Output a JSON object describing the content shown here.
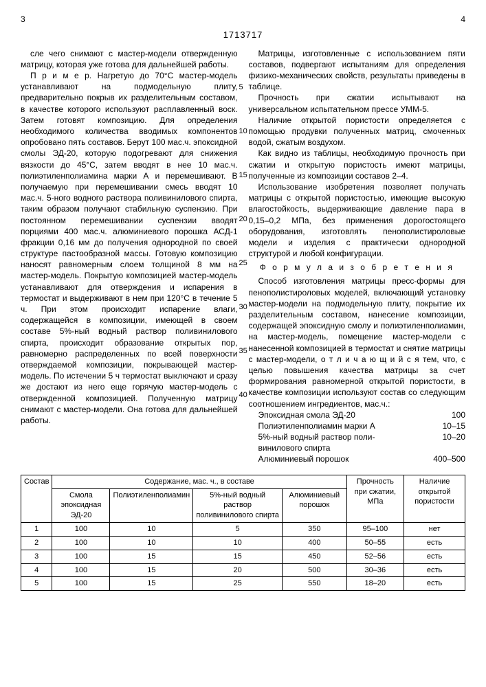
{
  "header": {
    "page_left": "3",
    "page_right": "4",
    "patent_number": "1713717"
  },
  "left": {
    "p1": "сле чего снимают с мастер-модели отвержденную матрицу, которая уже готова для дальнейшей работы.",
    "p2": "П р и м е р. Нагретую до 70°С мастер-модель устанавливают на подмодельную плиту, предварительно покрыв их разделительным составом, в качестве которого используют расплавленный воск. Затем готовят композицию. Для определения необходимого количества вводимых компонентов опробовано пять составов. Берут 100 мас.ч. эпоксидной смолы ЭД-20, которую подогревают для снижения вязкости до 45°С, затем вводят в нее 10 мас.ч. полиэтиленполиамина марки А и перемешивают. В получаемую при перемешивании смесь вводят 10 мас.ч. 5-ного водного раствора поливинилового спирта, таким образом получают стабильную суспензию. При постоянном перемешивании суспензии вводят порциями 400 мас.ч. алюминиевого порошка АСД-1 фракции 0,16 мм до получения однородной по своей структуре пастообразной массы. Готовую композицию наносят равномерным слоем толщиной 8 мм на мастер-модель. Покрытую композицией мастер-модель устанавливают для отверждения и испарения в термостат и выдерживают в нем при 120°С в течение 5 ч. При этом происходит испарение влаги, содержащейся в композиции, имеющей в своем составе 5%-ный водный раствор поливинилового спирта, происходит образование открытых пор, равномерно распределенных по всей поверхности отверждаемой композиции, покрывающей мастер-модель. По истечении 5 ч термостат выключают и сразу же достают из него еще горячую мастер-модель с отвержденной композицией. Полученную матрицу снимают с мастер-модели. Она готова для дальнейшей работы."
  },
  "right": {
    "p1": "Матрицы, изготовленные с использованием пяти составов, подвергают испытаниям для определения физико-механических свойств, результаты приведены в таблице.",
    "p2": "Прочность при сжатии испытывают на универсальном испытательном прессе УММ-5.",
    "p3": "Наличие открытой пористости определяется с помощью продувки полученных матриц, смоченных водой, сжатым воздухом.",
    "p4": "Как видно из таблицы, необходимую прочность при сжатии и открытую пористость имеют матрицы, полученные из композиции составов 2–4.",
    "p5": "Использование изобретения позволяет получать матрицы с открытой пористостью, имеющие высокую влагостойкость, выдерживающие давление пара в 0,15–0,2 МПа, без применения дорогостоящего оборудования, изготовлять пенополистироловые модели и изделия с практически однородной структурой и любой конфигурации.",
    "formula_title": "Ф о р м у л а  и з о б р е т е н и я",
    "p6": "Способ изготовления матрицы пресс-формы для пенополистироловых моделей, включающий установку мастер-модели на подмодельную плиту, покрытие их разделительным составом, нанесение композиции, содержащей эпоксидную смолу и полиэтиленполиамин, на мастер-модель, помещение мастер-модели с нанесенной композицией в термостат и снятие матрицы с мастер-модели, о т л и ч а ю щ и й с я тем, что, с целью повышения качества матрицы за счет формирования равномерной открытой пористости, в качестве композиции используют состав со следующим соотношением ингредиентов, мас.ч.:",
    "ing1n": "Эпоксидная смола ЭД-20",
    "ing1v": "100",
    "ing2n": "Полиэтиленполиамин марки А",
    "ing2v": "10–15",
    "ing3n": "5%-ный водный раствор поли-\nвинилового спирта",
    "ing3v": "10–20",
    "ing4n": "Алюминиевый порошок",
    "ing4v": "400–500"
  },
  "linenums": {
    "l5": "5",
    "l10": "10",
    "l15": "15",
    "l20": "20",
    "l25": "25",
    "l30": "30",
    "l35": "35",
    "l40": "40"
  },
  "table": {
    "headers": {
      "c1": "Состав",
      "c2": "Содержание, мас. ч., в составе",
      "c2a": "Смола эпоксидная ЭД-20",
      "c2b": "Полиэтиленполиамин",
      "c2c": "5%-ный водный раствор поливинилового спирта",
      "c2d": "Алюминиевый порошок",
      "c3": "Прочность при сжатии, МПа",
      "c4": "Наличие открытой пористости"
    },
    "rows": [
      [
        "1",
        "100",
        "10",
        "5",
        "350",
        "95–100",
        "нет"
      ],
      [
        "2",
        "100",
        "10",
        "10",
        "400",
        "50–55",
        "есть"
      ],
      [
        "3",
        "100",
        "15",
        "15",
        "450",
        "52–56",
        "есть"
      ],
      [
        "4",
        "100",
        "15",
        "20",
        "500",
        "30–36",
        "есть"
      ],
      [
        "5",
        "100",
        "15",
        "25",
        "550",
        "18–20",
        "есть"
      ]
    ]
  }
}
